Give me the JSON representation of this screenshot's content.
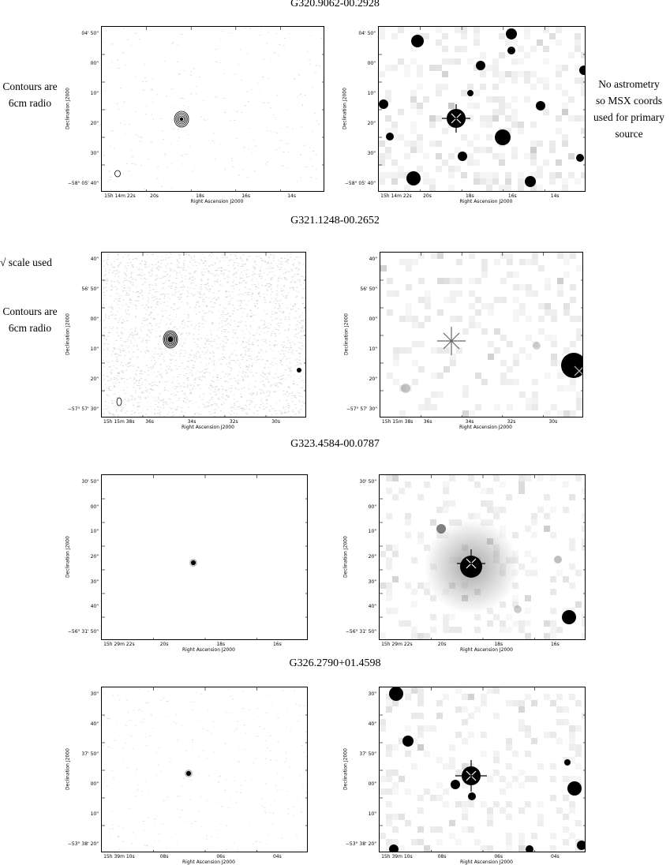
{
  "titles": [
    "G320.9062-00.2928",
    "G321.1248-00.2652",
    "G323.4584-00.0787",
    "G326.2790+01.4598"
  ],
  "notes": {
    "contours_1": [
      "Contours are",
      "6cm radio"
    ],
    "no_astrometry": [
      "No astrometry",
      "so MSX coords",
      "used for primary",
      "source"
    ],
    "sqrt_scale": "√ scale used",
    "contours_2": [
      "Contours are",
      "6cm radio"
    ]
  },
  "axis_labels": {
    "dec": "Declination J2000",
    "ra": "Right Ascension J2000"
  },
  "rows": [
    {
      "y_ticks": [
        "04' 50\"",
        "00\"",
        "10\"",
        "20\"",
        "30\"",
        "−58° 05' 40\""
      ],
      "x_ticks": [
        "15h 14m 22s",
        "20s",
        "18s",
        "16s",
        "14s"
      ]
    },
    {
      "y_ticks": [
        "40\"",
        "56' 50\"",
        "00\"",
        "10\"",
        "20\"",
        "−57° 57' 30\""
      ],
      "x_ticks": [
        "15h 15m 38s",
        "36s",
        "34s",
        "32s",
        "30s"
      ]
    },
    {
      "y_ticks": [
        "30' 50\"",
        "00\"",
        "10\"",
        "20\"",
        "30\"",
        "40\"",
        "−56° 31' 50\""
      ],
      "x_ticks": [
        "15h 29m 22s",
        "20s",
        "18s",
        "16s"
      ]
    },
    {
      "y_ticks": [
        "30\"",
        "40\"",
        "37' 50\"",
        "00\"",
        "10\"",
        "−53° 38' 20\""
      ],
      "x_ticks": [
        "15h 39m 10s",
        "08s",
        "06s",
        "04s"
      ]
    }
  ]
}
